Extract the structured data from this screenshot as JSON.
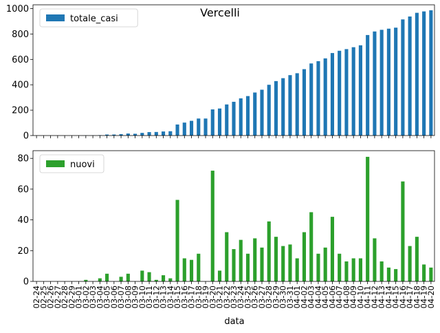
{
  "chart_data": {
    "title": "Vercelli",
    "xlabel": "data",
    "categories": [
      "02-24",
      "02-25",
      "02-26",
      "02-27",
      "02-28",
      "02-29",
      "03-01",
      "03-02",
      "03-03",
      "03-04",
      "03-05",
      "03-06",
      "03-07",
      "03-08",
      "03-09",
      "03-10",
      "03-11",
      "03-12",
      "03-13",
      "03-14",
      "03-15",
      "03-16",
      "03-17",
      "03-18",
      "03-19",
      "03-20",
      "03-21",
      "03-22",
      "03-23",
      "03-24",
      "03-25",
      "03-26",
      "03-27",
      "03-28",
      "03-29",
      "03-30",
      "03-31",
      "04-01",
      "04-02",
      "04-03",
      "04-04",
      "04-05",
      "04-06",
      "04-07",
      "04-08",
      "04-09",
      "04-10",
      "04-11",
      "04-12",
      "04-13",
      "04-14",
      "04-15",
      "04-16",
      "04-17",
      "04-18",
      "04-19",
      "04-20"
    ],
    "charts": [
      {
        "type": "bar",
        "color": "#1f77b4",
        "ylim": [
          0,
          1030
        ],
        "yticks": [
          0,
          200,
          400,
          600,
          800,
          1000
        ],
        "series": [
          {
            "name": "totale_casi",
            "values": [
              0,
              0,
              0,
              0,
              0,
              0,
              0,
              1,
              1,
              3,
              8,
              8,
              11,
              16,
              14,
              21,
              27,
              28,
              32,
              34,
              87,
              102,
              116,
              134,
              134,
              206,
              213,
              245,
              266,
              293,
              311,
              339,
              361,
              400,
              429,
              452,
              476,
              491,
              523,
              568,
              586,
              608,
              650,
              668,
              681,
              696,
              711,
              792,
              820,
              833,
              842,
              850,
              915,
              938,
              967,
              978,
              987
            ]
          }
        ]
      },
      {
        "type": "bar",
        "color": "#2ca02c",
        "ylim": [
          0,
          85
        ],
        "yticks": [
          0,
          20,
          40,
          60,
          80
        ],
        "series": [
          {
            "name": "nuovi",
            "values": [
              0,
              0,
              0,
              0,
              0,
              0,
              0,
              1,
              0,
              2,
              5,
              0,
              3,
              5,
              0,
              7,
              6,
              1,
              4,
              2,
              53,
              15,
              14,
              18,
              0,
              72,
              7,
              32,
              21,
              27,
              18,
              28,
              22,
              39,
              29,
              23,
              24,
              15,
              32,
              45,
              18,
              22,
              42,
              18,
              13,
              15,
              15,
              81,
              28,
              13,
              9,
              8,
              65,
              23,
              29,
              11,
              9
            ]
          }
        ]
      }
    ]
  }
}
